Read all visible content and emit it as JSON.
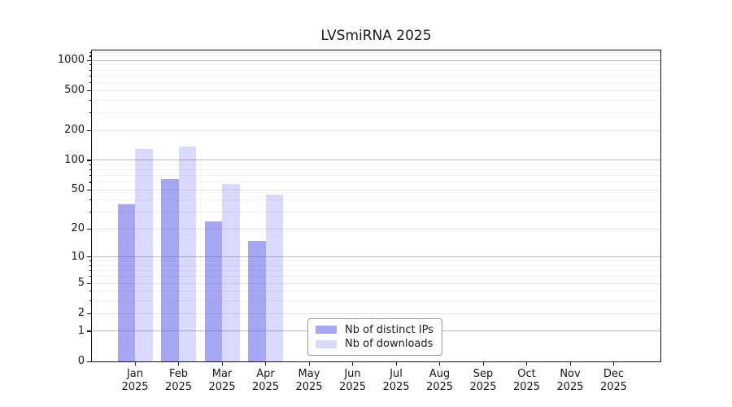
{
  "chart_data": {
    "type": "bar",
    "title": "LVSmiRNA 2025",
    "year_label": "2025",
    "categories": [
      "Jan",
      "Feb",
      "Mar",
      "Apr",
      "May",
      "Jun",
      "Jul",
      "Aug",
      "Sep",
      "Oct",
      "Nov",
      "Dec"
    ],
    "series": [
      {
        "name": "Nb of distinct IPs",
        "color": "rgba(102,102,238,0.58)",
        "values": [
          36,
          65,
          24,
          15,
          0,
          0,
          0,
          0,
          0,
          0,
          0,
          0
        ]
      },
      {
        "name": "Nb of downloads",
        "color": "rgba(102,102,238,0.25)",
        "values": [
          130,
          137,
          58,
          45,
          0,
          0,
          0,
          0,
          0,
          0,
          0,
          0
        ]
      }
    ],
    "xlabel": "",
    "ylabel": "",
    "y_axis": {
      "scale": "log1p",
      "max": 1252,
      "ticks_labeled": [
        0,
        1,
        2,
        5,
        10,
        20,
        50,
        100,
        200,
        500,
        1000
      ],
      "gridlines_major": [
        1,
        10,
        100,
        1000
      ],
      "gridlines_light": [
        2,
        5,
        20,
        50,
        200,
        500
      ],
      "gridlines_faint": [
        3,
        4,
        6,
        7,
        8,
        9,
        30,
        40,
        60,
        70,
        80,
        90,
        300,
        400,
        600,
        700,
        800,
        900,
        1100,
        1200
      ]
    },
    "legend": {
      "entries": [
        "Nb of distinct IPs",
        "Nb of downloads"
      ],
      "position": "inside-bottom-center"
    },
    "grid": true
  }
}
